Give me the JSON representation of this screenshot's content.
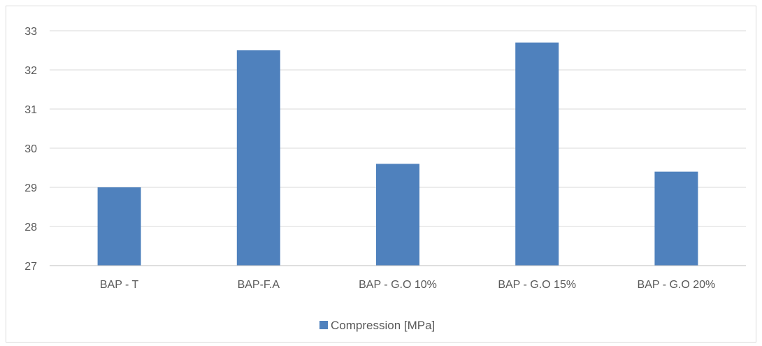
{
  "chart_data": {
    "type": "bar",
    "title": "",
    "xlabel": "",
    "ylabel": "",
    "categories": [
      "BAP - T",
      "BAP-F.A",
      "BAP - G.O 10%",
      "BAP - G.O 15%",
      "BAP - G.O 20%"
    ],
    "series": [
      {
        "name": "Compression [MPa]",
        "values": [
          29.0,
          32.5,
          29.6,
          32.7,
          29.4
        ],
        "color": "#4f81bd"
      }
    ],
    "ylim": [
      27,
      33
    ],
    "yticks": [
      "27",
      "28",
      "29",
      "30",
      "31",
      "32",
      "33"
    ],
    "grid": true,
    "legend_position": "bottom",
    "gridline_color": "#d9d9d9"
  }
}
